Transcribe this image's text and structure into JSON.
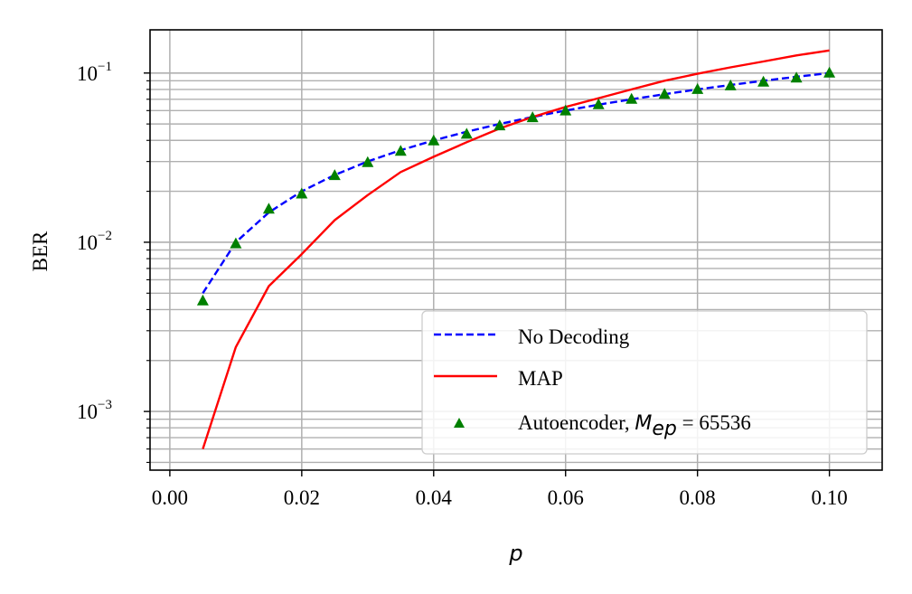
{
  "chart_data": {
    "type": "line",
    "xlabel": "p",
    "ylabel": "BER",
    "xlim": [
      -0.003,
      0.108
    ],
    "ylim": [
      0.00045,
      0.18
    ],
    "yscale": "log",
    "grid": "on (major and minor)",
    "legend_placement": "lower-right",
    "x_ticks": [
      {
        "value": 0.0,
        "label": "0.00"
      },
      {
        "value": 0.02,
        "label": "0.02"
      },
      {
        "value": 0.04,
        "label": "0.04"
      },
      {
        "value": 0.06,
        "label": "0.06"
      },
      {
        "value": 0.08,
        "label": "0.08"
      },
      {
        "value": 0.1,
        "label": "0.10"
      }
    ],
    "y_ticks": [
      {
        "value": 0.001,
        "base": "10",
        "exp": "−3"
      },
      {
        "value": 0.01,
        "base": "10",
        "exp": "−2"
      },
      {
        "value": 0.1,
        "base": "10",
        "exp": "−1"
      }
    ],
    "series": [
      {
        "name": "No Decoding",
        "style": "dashed",
        "color": "#0000ff",
        "x": [
          0.005,
          0.01,
          0.015,
          0.02,
          0.025,
          0.03,
          0.035,
          0.04,
          0.045,
          0.05,
          0.055,
          0.06,
          0.065,
          0.07,
          0.075,
          0.08,
          0.085,
          0.09,
          0.095,
          0.1
        ],
        "y": [
          0.005,
          0.01,
          0.015,
          0.02,
          0.025,
          0.03,
          0.035,
          0.04,
          0.045,
          0.05,
          0.055,
          0.06,
          0.065,
          0.07,
          0.075,
          0.08,
          0.085,
          0.09,
          0.095,
          0.1
        ]
      },
      {
        "name": "MAP",
        "style": "solid",
        "color": "#ff0000",
        "x": [
          0.005,
          0.01,
          0.015,
          0.02,
          0.025,
          0.03,
          0.035,
          0.04,
          0.045,
          0.05,
          0.055,
          0.06,
          0.065,
          0.07,
          0.075,
          0.08,
          0.085,
          0.09,
          0.095,
          0.1
        ],
        "y": [
          0.0006,
          0.0024,
          0.0055,
          0.0085,
          0.0135,
          0.019,
          0.026,
          0.032,
          0.039,
          0.047,
          0.055,
          0.063,
          0.071,
          0.08,
          0.09,
          0.099,
          0.108,
          0.117,
          0.127,
          0.136
        ]
      },
      {
        "name": "Autoencoder",
        "name_math": "M",
        "name_math_sub": "ep",
        "name_math_rhs": " = 65536",
        "style": "triangle markers",
        "color": "#008000",
        "x": [
          0.005,
          0.01,
          0.015,
          0.02,
          0.025,
          0.03,
          0.035,
          0.04,
          0.045,
          0.05,
          0.055,
          0.06,
          0.065,
          0.07,
          0.075,
          0.08,
          0.085,
          0.09,
          0.095,
          0.1
        ],
        "y": [
          0.0045,
          0.0098,
          0.0157,
          0.0193,
          0.0248,
          0.0296,
          0.0345,
          0.0398,
          0.0435,
          0.0488,
          0.0545,
          0.0598,
          0.065,
          0.07,
          0.075,
          0.08,
          0.084,
          0.0885,
          0.0935,
          0.1
        ]
      }
    ]
  },
  "colors": {
    "grid": "#b0b0b0",
    "frame": "#000000",
    "background": "#ffffff"
  }
}
